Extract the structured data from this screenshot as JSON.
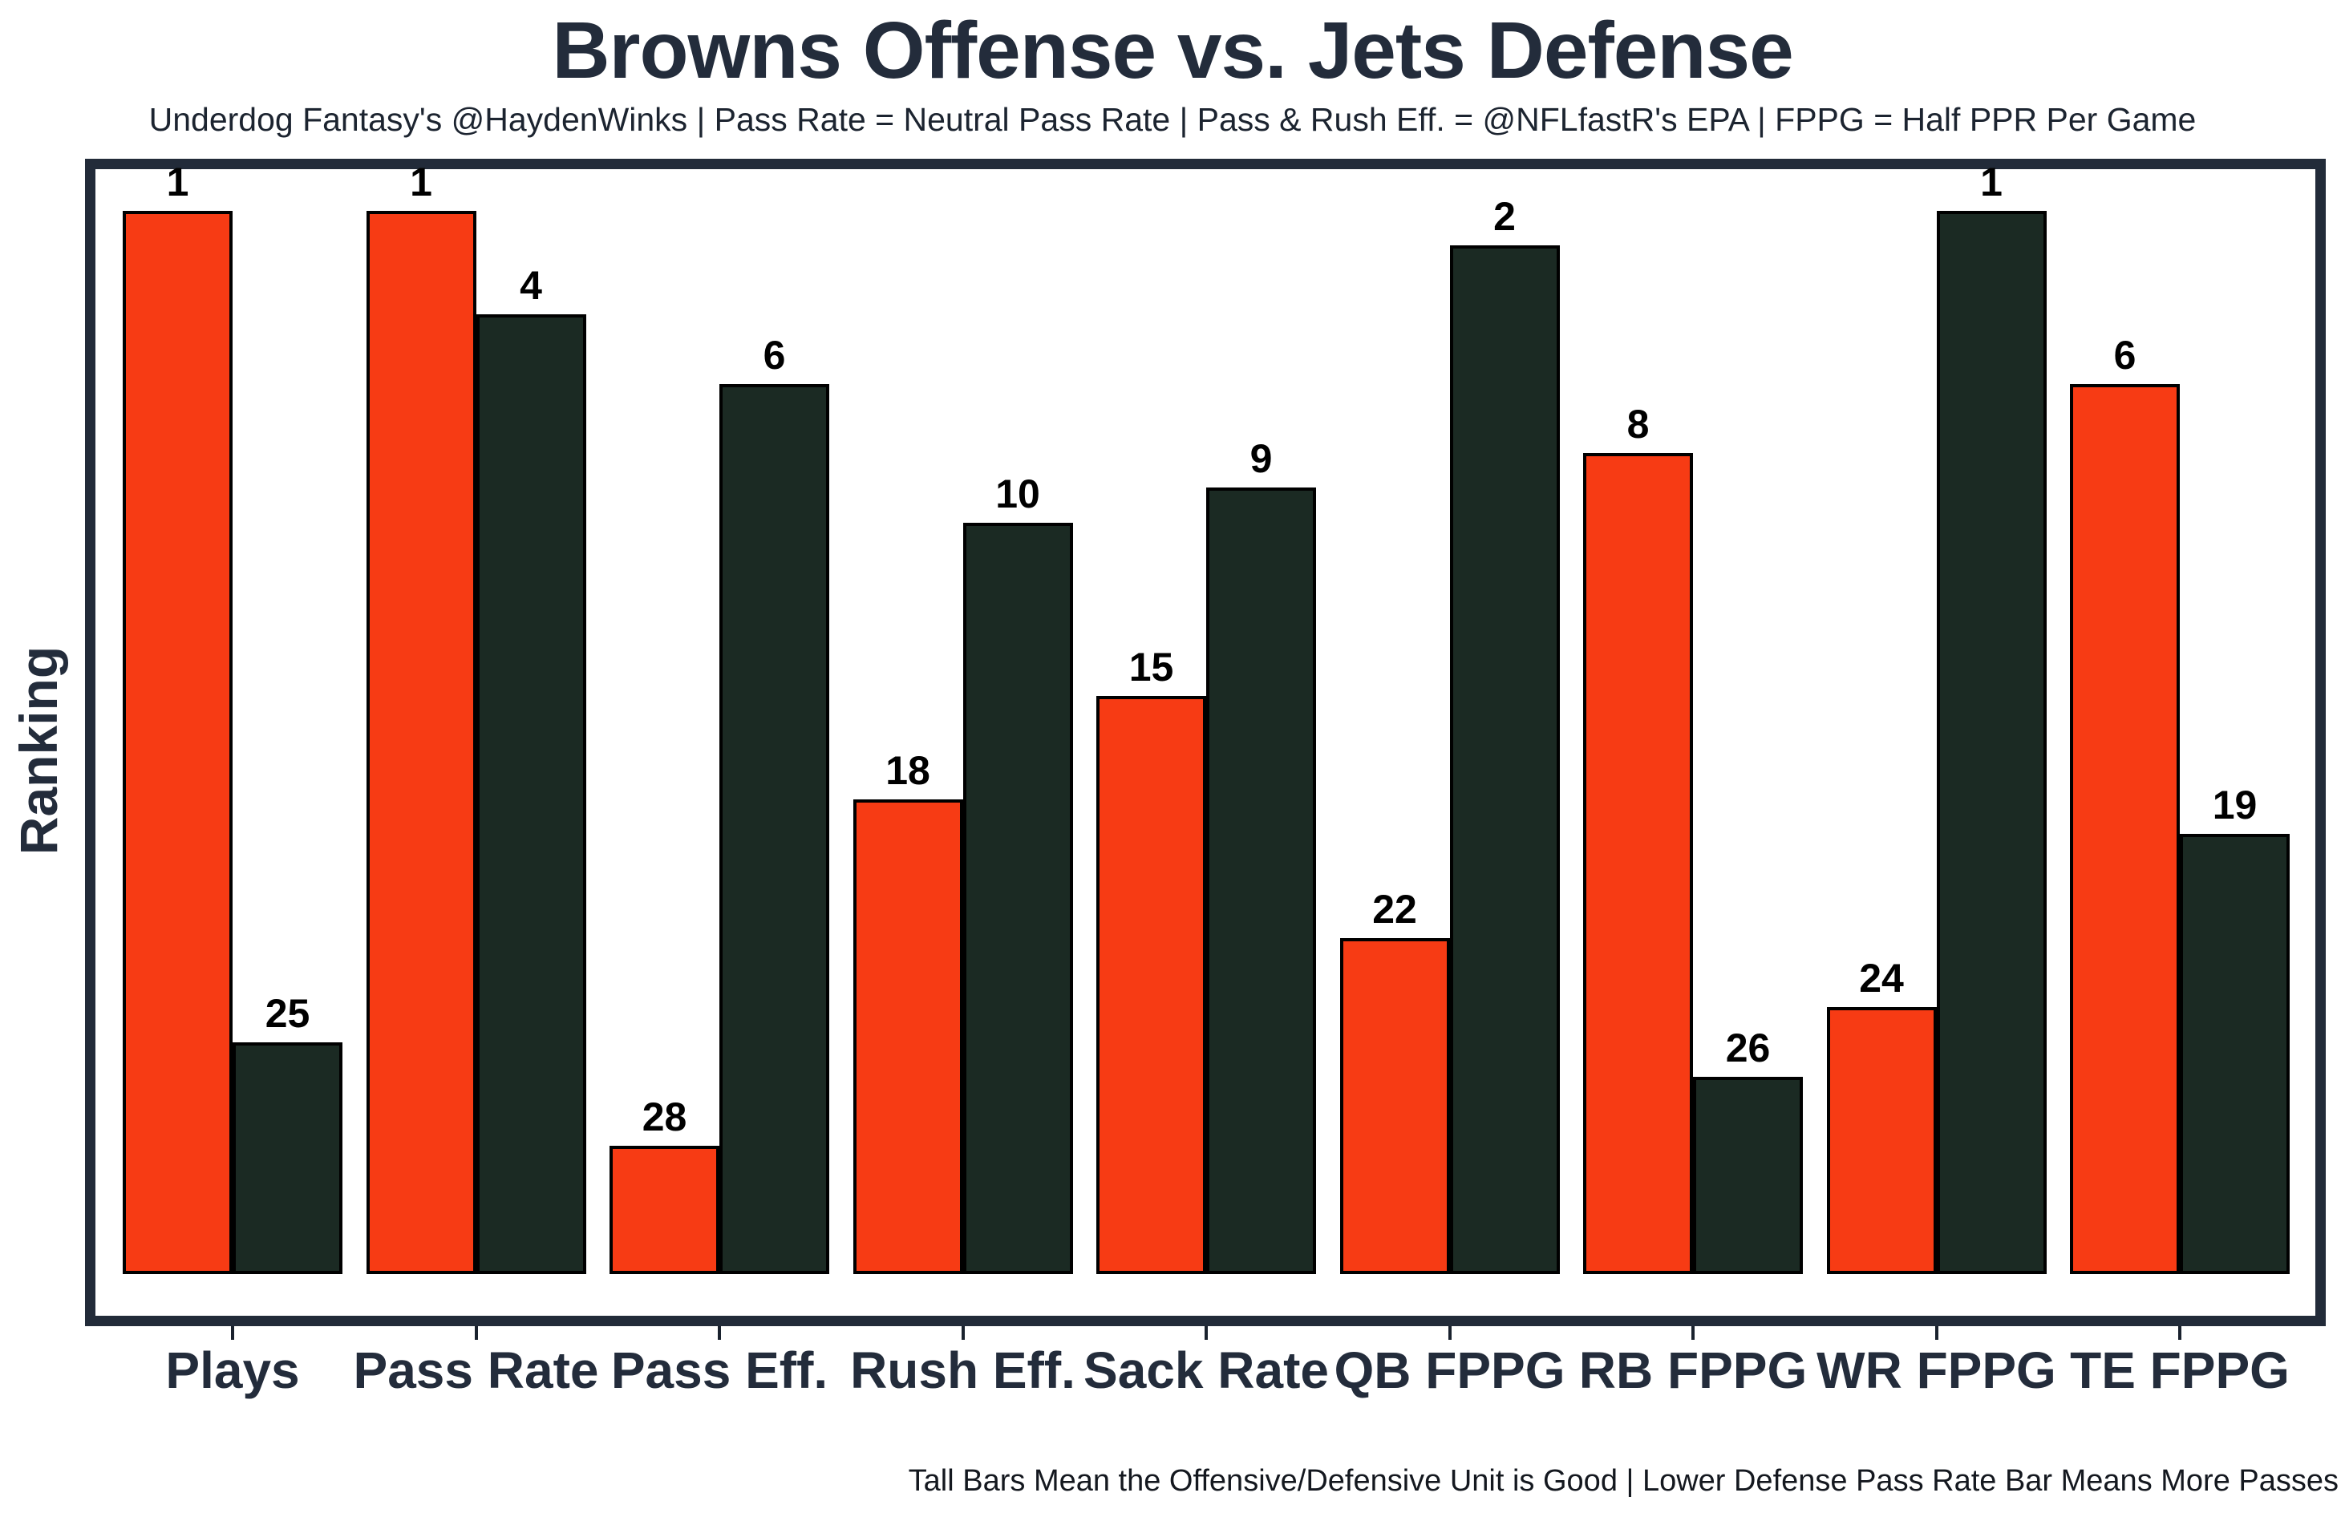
{
  "title": "Browns Offense vs. Jets Defense",
  "subtitle": "Underdog Fantasy's @HaydenWinks | Pass Rate = Neutral Pass Rate | Pass & Rush Eff. = @NFLfastR's EPA | FPPG = Half PPR Per Game",
  "footnote": "Tall Bars Mean the Offensive/Defensive Unit is Good | Lower Defense Pass Rate Bar Means More Passes",
  "colors": {
    "offense_bar": "#F73B14",
    "defense_bar": "#1B2A23",
    "bar_outline": "#000000",
    "frame": "#222B39",
    "text": "#232C3B",
    "value_label": "#000000"
  },
  "chart_data": {
    "type": "bar",
    "title": "Browns Offense vs. Jets Defense",
    "ylabel": "Ranking",
    "xlabel": "",
    "categories": [
      "Plays",
      "Pass Rate",
      "Pass Eff.",
      "Rush Eff.",
      "Sack Rate",
      "QB FPPG",
      "RB FPPG",
      "WR FPPG",
      "TE FPPG"
    ],
    "series": [
      {
        "name": "Browns Offense",
        "color": "#F73B14",
        "values": [
          1,
          1,
          28,
          18,
          15,
          22,
          8,
          24,
          6
        ]
      },
      {
        "name": "Jets Defense",
        "color": "#1B2A23",
        "values": [
          25,
          4,
          6,
          10,
          9,
          2,
          26,
          1,
          19
        ]
      }
    ],
    "value_meaning": "NFL ranking, 1 = best; taller bar = better rank",
    "grid": false,
    "legend_position": "none"
  }
}
